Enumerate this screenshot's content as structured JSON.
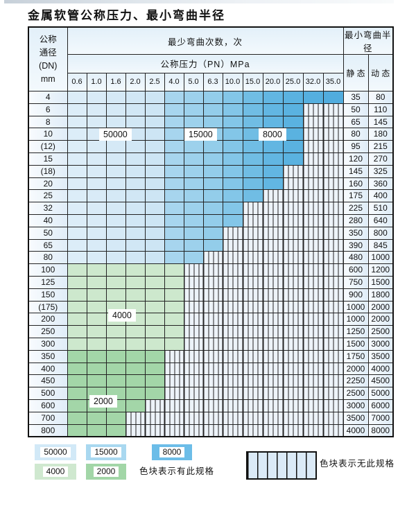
{
  "title": "金属软管公称压力、最小弯曲半径",
  "table": {
    "header": {
      "dn_label_lines": [
        "公称",
        "通径",
        "(DN)",
        "mm"
      ],
      "bend_times_label": "最少弯曲次数，次",
      "pressure_label": "公称压力（PN）MPa",
      "pressure_columns": [
        "0.6",
        "1.0",
        "1.6",
        "2.0",
        "2.5",
        "4.0",
        "5.0",
        "6.3",
        "10.0",
        "15.0",
        "20.0",
        "25.0",
        "32.0",
        "35.0"
      ],
      "radius_label": "最小弯曲半径",
      "static_label": "静 态",
      "dynamic_label": "动 态"
    }
  },
  "overlay_labels": [
    {
      "text": "50000"
    },
    {
      "text": "15000"
    },
    {
      "text": "8000"
    },
    {
      "text": "4000"
    },
    {
      "text": "2000"
    }
  ],
  "legend": {
    "series": [
      {
        "label": "50000",
        "color": "#d2e9f7"
      },
      {
        "label": "15000",
        "color": "#a9d8f0"
      },
      {
        "label": "8000",
        "color": "#6cbde8"
      },
      {
        "label": "4000",
        "color": "#cfe8cf"
      },
      {
        "label": "2000",
        "color": "#a2d6a7"
      }
    ],
    "has_spec_text": "色块表示有此规格",
    "no_spec_text": "色块表示无此规格"
  },
  "chart_data": {
    "type": "table",
    "title": "金属软管公称压力、最小弯曲半径",
    "pn_columns_mpa": [
      "0.6",
      "1.0",
      "1.6",
      "2.0",
      "2.5",
      "4.0",
      "5.0",
      "6.3",
      "10.0",
      "15.0",
      "20.0",
      "25.0",
      "32.0",
      "35.0"
    ],
    "rows": [
      {
        "dn": "4",
        "max_pn": "35.0",
        "band": "blue",
        "static": "35",
        "dynamic": "80"
      },
      {
        "dn": "6",
        "max_pn": "25.0",
        "band": "blue",
        "static": "50",
        "dynamic": "110"
      },
      {
        "dn": "8",
        "max_pn": "25.0",
        "band": "blue",
        "static": "65",
        "dynamic": "145"
      },
      {
        "dn": "10",
        "max_pn": "25.0",
        "band": "blue",
        "static": "80",
        "dynamic": "180"
      },
      {
        "dn": "(12)",
        "max_pn": "25.0",
        "band": "blue",
        "static": "95",
        "dynamic": "215"
      },
      {
        "dn": "15",
        "max_pn": "25.0",
        "band": "blue",
        "static": "120",
        "dynamic": "270"
      },
      {
        "dn": "(18)",
        "max_pn": "20.0",
        "band": "blue",
        "static": "145",
        "dynamic": "325"
      },
      {
        "dn": "20",
        "max_pn": "20.0",
        "band": "blue",
        "static": "160",
        "dynamic": "360"
      },
      {
        "dn": "25",
        "max_pn": "15.0",
        "band": "blue",
        "static": "175",
        "dynamic": "400"
      },
      {
        "dn": "32",
        "max_pn": "10.0",
        "band": "blue",
        "static": "225",
        "dynamic": "510"
      },
      {
        "dn": "40",
        "max_pn": "10.0",
        "band": "blue",
        "static": "280",
        "dynamic": "640"
      },
      {
        "dn": "50",
        "max_pn": "6.3",
        "band": "blue",
        "static": "350",
        "dynamic": "800"
      },
      {
        "dn": "65",
        "max_pn": "6.3",
        "band": "blue",
        "static": "390",
        "dynamic": "845"
      },
      {
        "dn": "80",
        "max_pn": "5.0",
        "band": "blue",
        "static": "480",
        "dynamic": "1000"
      },
      {
        "dn": "100",
        "max_pn": "4.0",
        "band": "4000",
        "static": "600",
        "dynamic": "1200"
      },
      {
        "dn": "125",
        "max_pn": "4.0",
        "band": "4000",
        "static": "750",
        "dynamic": "1500"
      },
      {
        "dn": "150",
        "max_pn": "4.0",
        "band": "4000",
        "static": "900",
        "dynamic": "1800"
      },
      {
        "dn": "(175)",
        "max_pn": "4.0",
        "band": "4000",
        "static": "1000",
        "dynamic": "2000"
      },
      {
        "dn": "200",
        "max_pn": "4.0",
        "band": "4000",
        "static": "1000",
        "dynamic": "2000"
      },
      {
        "dn": "250",
        "max_pn": "4.0",
        "band": "4000",
        "static": "1250",
        "dynamic": "2500"
      },
      {
        "dn": "300",
        "max_pn": "4.0",
        "band": "4000",
        "static": "1500",
        "dynamic": "3000"
      },
      {
        "dn": "350",
        "max_pn": "2.5",
        "band": "2000",
        "static": "1750",
        "dynamic": "3500"
      },
      {
        "dn": "400",
        "max_pn": "2.5",
        "band": "2000",
        "static": "2000",
        "dynamic": "4000"
      },
      {
        "dn": "450",
        "max_pn": "2.5",
        "band": "2000",
        "static": "2250",
        "dynamic": "4500"
      },
      {
        "dn": "500",
        "max_pn": "2.5",
        "band": "2000",
        "static": "2500",
        "dynamic": "5000"
      },
      {
        "dn": "600",
        "max_pn": "2.0",
        "band": "2000",
        "static": "3000",
        "dynamic": "6000"
      },
      {
        "dn": "700",
        "max_pn": "1.6",
        "band": "2000",
        "static": "3500",
        "dynamic": "7000"
      },
      {
        "dn": "800",
        "max_pn": "1.6",
        "band": "2000",
        "static": "4000",
        "dynamic": "8000"
      }
    ],
    "cycle_zones": [
      {
        "cycles": "50000",
        "applies_to": "pn_columns",
        "values": [
          "0.6",
          "1.0",
          "1.6",
          "2.0",
          "2.5"
        ]
      },
      {
        "cycles": "15000",
        "applies_to": "pn_columns",
        "values": [
          "4.0",
          "5.0",
          "6.3"
        ]
      },
      {
        "cycles": "8000",
        "applies_to": "pn_columns",
        "values": [
          "10.0",
          "15.0",
          "20.0",
          "25.0",
          "32.0",
          "35.0"
        ]
      },
      {
        "cycles": "4000",
        "applies_to": "dn_rows",
        "values": [
          "100",
          "125",
          "150",
          "(175)",
          "200",
          "250",
          "300"
        ]
      },
      {
        "cycles": "2000",
        "applies_to": "dn_rows",
        "values": [
          "350",
          "400",
          "450",
          "500",
          "600",
          "700",
          "800"
        ]
      }
    ],
    "legend_notes": [
      "色块表示有此规格",
      "色块表示无此规格"
    ]
  }
}
